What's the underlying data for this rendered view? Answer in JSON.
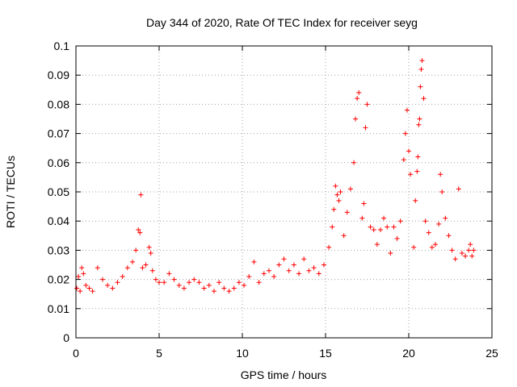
{
  "chart_data": {
    "type": "scatter",
    "title": "Day 344 of 2020, Rate Of TEC Index for receiver seyg",
    "xlabel": "GPS time / hours",
    "ylabel": "ROTI / TECUs",
    "xlim": [
      0,
      25
    ],
    "ylim": [
      0,
      0.1
    ],
    "x_ticks": [
      "0",
      "5",
      "10",
      "15",
      "20",
      "25"
    ],
    "y_ticks": [
      "0",
      "0.01",
      "0.02",
      "0.03",
      "0.04",
      "0.05",
      "0.06",
      "0.07",
      "0.08",
      "0.09",
      "0.1"
    ],
    "grid": true,
    "marker": "+",
    "marker_color": "#ff0000",
    "series": [
      {
        "x": [
          0.05,
          0.15,
          0.25,
          0.35,
          0.45,
          0.6,
          0.8,
          1.0,
          1.3,
          1.6,
          1.9,
          2.2,
          2.5,
          2.8,
          3.1,
          3.4,
          3.6,
          3.75,
          3.85,
          3.9,
          4.0,
          4.2,
          4.4,
          4.5,
          4.6,
          4.8,
          5.0,
          5.3,
          5.6,
          5.9,
          6.2,
          6.5,
          6.8,
          7.1,
          7.4,
          7.7,
          8.0,
          8.3,
          8.6,
          8.9,
          9.2,
          9.5,
          9.8,
          10.1,
          10.4,
          10.7,
          11.0,
          11.3,
          11.6,
          11.9,
          12.2,
          12.5,
          12.8,
          13.1,
          13.4,
          13.7,
          14.0,
          14.3,
          14.6,
          14.9,
          15.2,
          15.4,
          15.5,
          15.6,
          15.7,
          15.8,
          15.9,
          16.1,
          16.3,
          16.5,
          16.7,
          16.8,
          16.9,
          17.0,
          17.2,
          17.3,
          17.4,
          17.5,
          17.7,
          17.9,
          18.1,
          18.3,
          18.5,
          18.7,
          18.9,
          19.1,
          19.3,
          19.5,
          19.7,
          19.8,
          19.9,
          20.0,
          20.1,
          20.3,
          20.4,
          20.5,
          20.55,
          20.6,
          20.65,
          20.7,
          20.75,
          20.8,
          20.9,
          21.0,
          21.2,
          21.4,
          21.6,
          21.8,
          21.9,
          22.0,
          22.2,
          22.4,
          22.6,
          22.8,
          23.0,
          23.2,
          23.4,
          23.6,
          23.7,
          23.8,
          23.9
        ],
        "y": [
          0.017,
          0.021,
          0.016,
          0.024,
          0.022,
          0.018,
          0.017,
          0.016,
          0.024,
          0.02,
          0.018,
          0.017,
          0.019,
          0.021,
          0.024,
          0.026,
          0.03,
          0.037,
          0.036,
          0.049,
          0.024,
          0.025,
          0.031,
          0.029,
          0.023,
          0.02,
          0.019,
          0.019,
          0.022,
          0.02,
          0.018,
          0.017,
          0.019,
          0.02,
          0.019,
          0.017,
          0.018,
          0.016,
          0.019,
          0.017,
          0.016,
          0.017,
          0.019,
          0.018,
          0.021,
          0.026,
          0.019,
          0.022,
          0.023,
          0.021,
          0.025,
          0.027,
          0.023,
          0.025,
          0.022,
          0.027,
          0.023,
          0.024,
          0.022,
          0.025,
          0.031,
          0.038,
          0.044,
          0.052,
          0.049,
          0.047,
          0.05,
          0.035,
          0.043,
          0.051,
          0.06,
          0.075,
          0.082,
          0.084,
          0.041,
          0.046,
          0.072,
          0.08,
          0.038,
          0.037,
          0.032,
          0.037,
          0.041,
          0.038,
          0.029,
          0.038,
          0.034,
          0.04,
          0.061,
          0.07,
          0.078,
          0.064,
          0.056,
          0.031,
          0.047,
          0.057,
          0.062,
          0.073,
          0.075,
          0.086,
          0.092,
          0.095,
          0.082,
          0.04,
          0.036,
          0.031,
          0.032,
          0.039,
          0.056,
          0.05,
          0.041,
          0.035,
          0.03,
          0.027,
          0.051,
          0.029,
          0.028,
          0.03,
          0.032,
          0.028,
          0.03
        ]
      }
    ]
  }
}
